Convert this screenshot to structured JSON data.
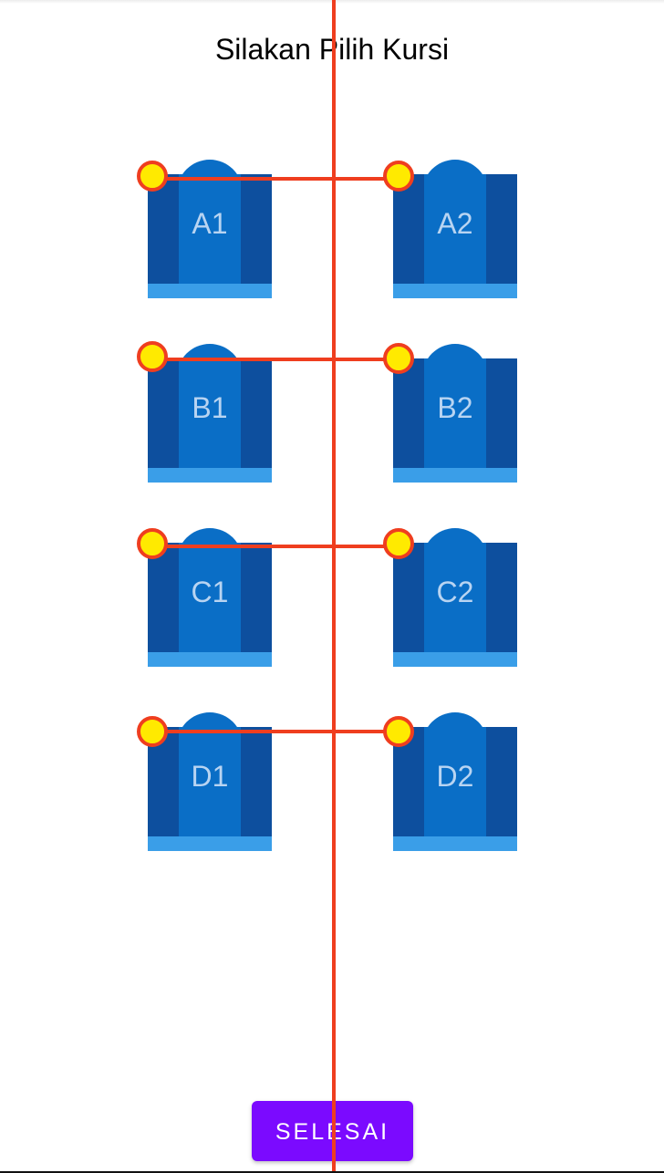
{
  "header": {
    "title": "Silakan Pilih Kursi"
  },
  "seats": {
    "row_a": {
      "left": "A1",
      "right": "A2"
    },
    "row_b": {
      "left": "B1",
      "right": "B2"
    },
    "row_c": {
      "left": "C1",
      "right": "C2"
    },
    "row_d": {
      "left": "D1",
      "right": "D2"
    }
  },
  "footer": {
    "done_label": "SELESAI"
  },
  "colors": {
    "seat_dark": "#0d4f9e",
    "seat_mid": "#0a6ec6",
    "seat_light": "#3a9ee8",
    "seat_label": "#b8d4f2",
    "accent_button": "#7b0aff",
    "marker_line": "#ef3e1f",
    "marker_dot": "#ffea00"
  }
}
